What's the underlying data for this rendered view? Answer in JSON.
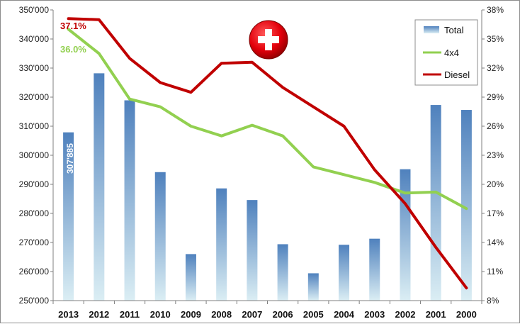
{
  "chart_data": {
    "type": "bar",
    "categories": [
      "2013",
      "2012",
      "2011",
      "2010",
      "2009",
      "2008",
      "2007",
      "2006",
      "2005",
      "2004",
      "2003",
      "2002",
      "2001",
      "2000"
    ],
    "series": [
      {
        "name": "Total",
        "type": "bar",
        "axis": "left",
        "values": [
          307885,
          328200,
          318900,
          294200,
          266000,
          288600,
          284600,
          269400,
          259400,
          269200,
          271300,
          295200,
          317300,
          315600
        ]
      },
      {
        "name": "4x4",
        "type": "line",
        "axis": "right",
        "color": "#92d050",
        "values": [
          36.0,
          33.5,
          28.8,
          28.0,
          26.0,
          25.0,
          26.1,
          25.0,
          21.8,
          21.0,
          20.2,
          19.1,
          19.2,
          17.5
        ]
      },
      {
        "name": "Diesel",
        "type": "line",
        "axis": "right",
        "color": "#c00000",
        "values": [
          37.1,
          37.0,
          33.0,
          30.5,
          29.5,
          32.5,
          32.6,
          30.0,
          28.0,
          26.0,
          21.5,
          18.0,
          13.5,
          9.3
        ]
      }
    ],
    "y_left": {
      "min": 250000,
      "max": 350000,
      "ticks": [
        "250'000",
        "260'000",
        "270'000",
        "280'000",
        "290'000",
        "300'000",
        "310'000",
        "320'000",
        "330'000",
        "340'000",
        "350'000"
      ]
    },
    "y_right": {
      "min": 8,
      "max": 38,
      "ticks": [
        "8%",
        "11%",
        "14%",
        "17%",
        "20%",
        "23%",
        "26%",
        "29%",
        "32%",
        "35%",
        "38%"
      ]
    },
    "legend_position": "top-right",
    "grid": false,
    "annotations": {
      "bar_label": "307'885",
      "diesel_label": "37.1%",
      "fourx4_label": "36.0%"
    },
    "bar_gradient": [
      "#4f81bd",
      "#dbeef4"
    ],
    "flag_colors": {
      "red": "#e3000b",
      "cross": "#ffffff"
    }
  }
}
